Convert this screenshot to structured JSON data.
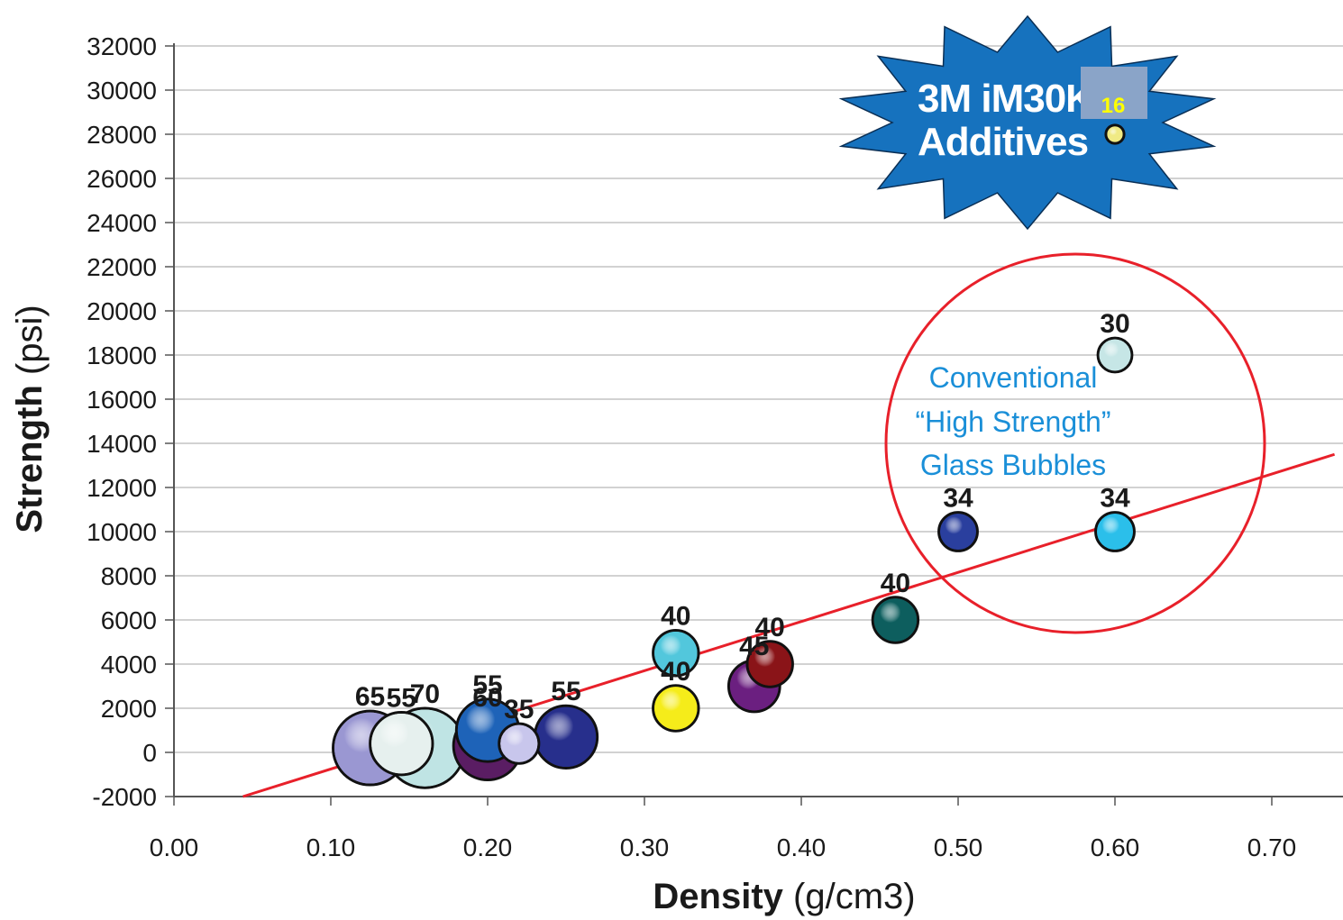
{
  "chart_data": {
    "type": "scatter",
    "xlabel_bold": "Density",
    "xlabel_rest": " (g/cm3)",
    "ylabel_bold": "Strength",
    "ylabel_rest": " (psi)",
    "xlim": [
      0.0,
      0.74
    ],
    "ylim": [
      -2000,
      32000
    ],
    "x_ticks": [
      0.0,
      0.1,
      0.2,
      0.3,
      0.4,
      0.5,
      0.6,
      0.7
    ],
    "x_tick_labels": [
      "0.00",
      "0.10",
      "0.20",
      "0.30",
      "0.40",
      "0.50",
      "0.60",
      "0.70"
    ],
    "y_ticks": [
      -2000,
      0,
      2000,
      4000,
      6000,
      8000,
      10000,
      12000,
      14000,
      16000,
      18000,
      20000,
      22000,
      24000,
      26000,
      28000,
      30000,
      32000
    ],
    "y_tick_labels": [
      "-2000",
      "0",
      "2000",
      "4000",
      "6000",
      "8000",
      "10000",
      "12000",
      "14000",
      "16000",
      "18000",
      "20000",
      "22000",
      "24000",
      "26000",
      "28000",
      "30000",
      "32000"
    ],
    "grid": "horizontal",
    "points": [
      {
        "x": 0.125,
        "y": 200,
        "label": "65",
        "bubble_size": 65,
        "color": "#9a97d2"
      },
      {
        "x": 0.145,
        "y": 400,
        "label": "55",
        "bubble_size": 55,
        "color": "#e6f0ee"
      },
      {
        "x": 0.16,
        "y": 200,
        "label": "70",
        "bubble_size": 70,
        "color": "#bfe4e4"
      },
      {
        "x": 0.2,
        "y": 300,
        "label": "60",
        "bubble_size": 60,
        "color": "#5a1d63"
      },
      {
        "x": 0.2,
        "y": 1000,
        "label": "55",
        "bubble_size": 55,
        "color": "#1e63b8"
      },
      {
        "x": 0.22,
        "y": 400,
        "label": "35",
        "bubble_size": 35,
        "color": "#c8c6ec"
      },
      {
        "x": 0.25,
        "y": 700,
        "label": "55",
        "bubble_size": 55,
        "color": "#272f8c"
      },
      {
        "x": 0.32,
        "y": 4500,
        "label": "40",
        "bubble_size": 40,
        "color": "#52c7dc"
      },
      {
        "x": 0.32,
        "y": 2000,
        "label": "40",
        "bubble_size": 40,
        "color": "#f5ec1a"
      },
      {
        "x": 0.37,
        "y": 3000,
        "label": "45",
        "bubble_size": 45,
        "color": "#6b1f80"
      },
      {
        "x": 0.38,
        "y": 4000,
        "label": "40",
        "bubble_size": 40,
        "color": "#8a1418"
      },
      {
        "x": 0.46,
        "y": 6000,
        "label": "40",
        "bubble_size": 40,
        "color": "#0d5e5e"
      },
      {
        "x": 0.5,
        "y": 10000,
        "label": "34",
        "bubble_size": 34,
        "color": "#2a3f9e"
      },
      {
        "x": 0.6,
        "y": 10000,
        "label": "34",
        "bubble_size": 34,
        "color": "#2bbfea"
      },
      {
        "x": 0.6,
        "y": 18000,
        "label": "30",
        "bubble_size": 30,
        "color": "#c6e6e6"
      },
      {
        "x": 0.6,
        "y": 28000,
        "label": "16",
        "bubble_size": 16,
        "color": "#f0ea84"
      }
    ],
    "trendline": {
      "x": [
        0.044,
        0.74
      ],
      "y": [
        -2000,
        13500
      ],
      "color": "#e8202a"
    },
    "callout": {
      "lines": [
        "Conventional",
        "“High Strength”",
        "Glass Bubbles"
      ],
      "color": "#1a8fd8",
      "circle_color": "#e8202a"
    },
    "starburst": {
      "lines": [
        "3M iM30K",
        "Additives"
      ],
      "fill": "#1672be"
    }
  }
}
